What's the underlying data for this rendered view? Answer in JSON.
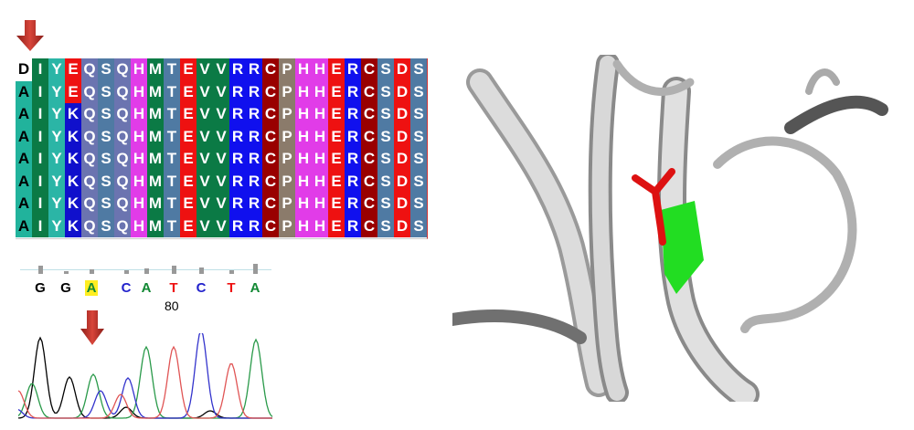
{
  "alignment": {
    "rows": [
      "DIYEQSQHMTEVVRRCPHHERCSDS",
      "AIYEQSQHMTEVVRRCPHHERCSDS",
      "AIYKQSQHMTEVVRRCPHHERCSDS",
      "AIYKQSQHMTEVVRRCPHHERCSDS",
      "AIYKQSQHMTEVVRRCPHHERCSDS",
      "AIYKQSQHMTEVVRRCPHHERCSDS",
      "AIYKQSQHMTEVVRRCPHHERCSDS",
      "AIYKQSQHMTEVVRRCPHHERCSDS"
    ],
    "residue_colors": {
      "A": "#21b39c",
      "I": "#0b7a45",
      "Y": "#2bb5a6",
      "E": "#ee1111",
      "K": "#1010cc",
      "Q": "#6b74b0",
      "S": "#4f7aa3",
      "H": "#e13ce8",
      "M": "#0b7a45",
      "T": "#4f7aa3",
      "V": "#0b7a45",
      "R": "#1010ee",
      "C": "#990000",
      "P": "#8b7b6b",
      "D": "#ee1111"
    },
    "highlight_residue": "D"
  },
  "sequencing": {
    "base_calls": [
      "G",
      "G",
      "A",
      "C",
      "A",
      "T",
      "C",
      "T",
      "A"
    ],
    "base_colors": {
      "G": "#000000",
      "A": "#118833",
      "C": "#2222cc",
      "T": "#ee1111"
    },
    "highlighted_base_index": 2,
    "position_label": "80"
  },
  "colors": {
    "arrow": "#c0302a",
    "mutation_site": "#22dd22",
    "mutant_residue": "#dd1111",
    "ribbon": "#bfbfbf"
  }
}
